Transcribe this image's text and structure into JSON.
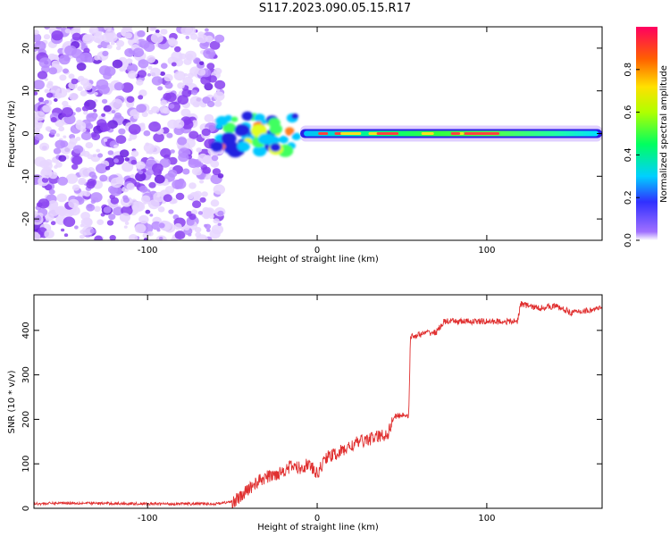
{
  "title": "S117.2023.090.05.15.R17",
  "chart_data": [
    {
      "type": "heatmap",
      "title": "",
      "xlabel": "Height of straight line (km)",
      "ylabel": "Frequency (Hz)",
      "xlim": [
        -167,
        168
      ],
      "ylim": [
        -25,
        25
      ],
      "xticks": [
        -100,
        0,
        100
      ],
      "yticks": [
        -20,
        -10,
        0,
        10,
        20
      ],
      "grid": false,
      "colorbar": {
        "label": "Normalized spectral amplitude",
        "range": [
          0,
          1
        ],
        "ticks": [
          0.0,
          0.2,
          0.4,
          0.6,
          0.8
        ],
        "colormap": "rainbow"
      },
      "features": {
        "noise_region_km": [
          -167,
          -60
        ],
        "transition_region_km": [
          -60,
          -10
        ],
        "tone_region_km": [
          -10,
          168
        ],
        "tone_frequency_hz": 0
      }
    },
    {
      "type": "line",
      "title": "",
      "xlabel": "Height of straight line (km)",
      "ylabel": "SNR (10 * v/v)",
      "xlim": [
        -167,
        168
      ],
      "ylim": [
        0,
        480
      ],
      "xticks": [
        -100,
        0,
        100
      ],
      "yticks": [
        0,
        100,
        200,
        300,
        400
      ],
      "grid": false,
      "series": [
        {
          "color": "#e03030",
          "x": [
            -167,
            -150,
            -100,
            -60,
            -50,
            -45,
            -40,
            -35,
            -30,
            -25,
            -20,
            -15,
            -10,
            -5,
            0,
            5,
            10,
            15,
            20,
            25,
            30,
            35,
            40,
            42,
            45,
            50,
            54,
            55,
            60,
            65,
            70,
            75,
            80,
            90,
            100,
            110,
            118,
            120,
            130,
            140,
            150,
            160,
            168
          ],
          "y": [
            10,
            12,
            10,
            10,
            15,
            25,
            45,
            60,
            70,
            75,
            85,
            95,
            90,
            100,
            75,
            115,
            120,
            130,
            140,
            150,
            155,
            160,
            165,
            170,
            205,
            210,
            210,
            385,
            390,
            395,
            395,
            420,
            420,
            420,
            420,
            420,
            420,
            460,
            450,
            455,
            440,
            445,
            450
          ]
        }
      ]
    }
  ]
}
